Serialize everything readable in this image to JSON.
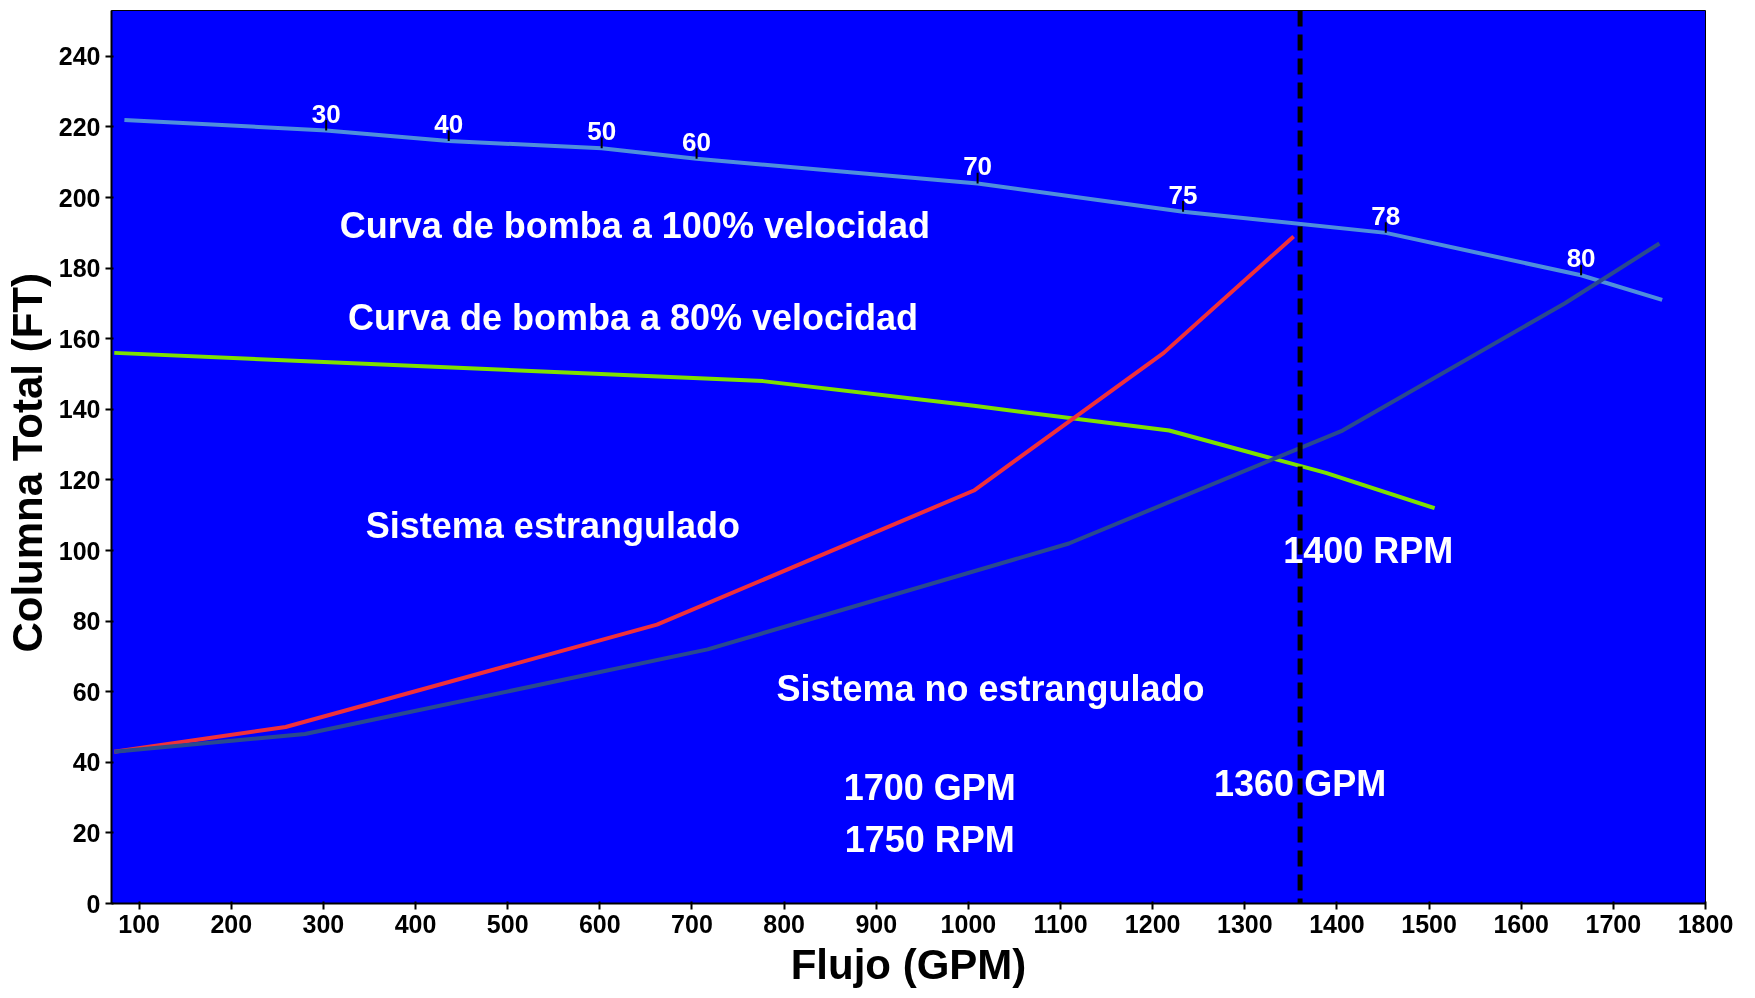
{
  "chart_data": {
    "type": "line",
    "xlabel": "Flujo (GPM)",
    "ylabel": "Columna Total  (FT)",
    "xlim": [
      70,
      1800
    ],
    "ylim": [
      0,
      253
    ],
    "xticks": [
      100,
      200,
      300,
      400,
      500,
      600,
      700,
      800,
      900,
      1000,
      1100,
      1200,
      1300,
      1400,
      1500,
      1600,
      1700,
      1800
    ],
    "yticks": [
      0,
      20,
      40,
      60,
      80,
      100,
      120,
      140,
      160,
      180,
      200,
      220,
      240
    ],
    "grid": false,
    "marker": "none",
    "line_style": "solid",
    "series": [
      {
        "color": "#4f8fdc",
        "x": [
          84,
          303,
          436,
          602,
          705,
          1010,
          1233,
          1453,
          1665,
          1753
        ],
        "values": [
          222,
          219,
          216,
          214,
          211,
          204,
          196,
          190,
          178,
          171
        ]
      },
      {
        "color": "#7ee000",
        "x": [
          73,
          777,
          1006,
          1218,
          1388,
          1506
        ],
        "values": [
          156,
          148,
          141,
          134,
          122,
          112
        ]
      },
      {
        "color": "#f0303a",
        "x": [
          73,
          259,
          662,
          1006,
          1212,
          1353
        ],
        "values": [
          43,
          50,
          79,
          117,
          156,
          189
        ]
      },
      {
        "color": "#2a4a8e",
        "x": [
          73,
          280,
          717,
          1109,
          1406,
          1647,
          1750
        ],
        "values": [
          43,
          48,
          72,
          102,
          134,
          170,
          187
        ]
      }
    ],
    "ref_lines": [
      {
        "axis": "x",
        "value": 1360,
        "label": "1360 GPM",
        "color": "#000000",
        "line_style": "dashed"
      }
    ],
    "annotations": [
      "Curva de bomba a 100% velocidad",
      "Curva de bomba a 80% velocidad",
      "Sistema estrangulado",
      "Sistema no estrangulado",
      "1700 GPM",
      "1750 RPM",
      "1400 RPM",
      {
        "text": "30",
        "x": 303,
        "y": 219
      },
      {
        "text": "40",
        "x": 436,
        "y": 216
      },
      {
        "text": "50",
        "x": 602,
        "y": 214
      },
      {
        "text": "60",
        "x": 705,
        "y": 211
      },
      {
        "text": "70",
        "x": 1010,
        "y": 204
      },
      {
        "text": "75",
        "x": 1233,
        "y": 196
      },
      {
        "text": "78",
        "x": 1453,
        "y": 190
      },
      {
        "text": "80",
        "x": 1665,
        "y": 178
      }
    ]
  }
}
